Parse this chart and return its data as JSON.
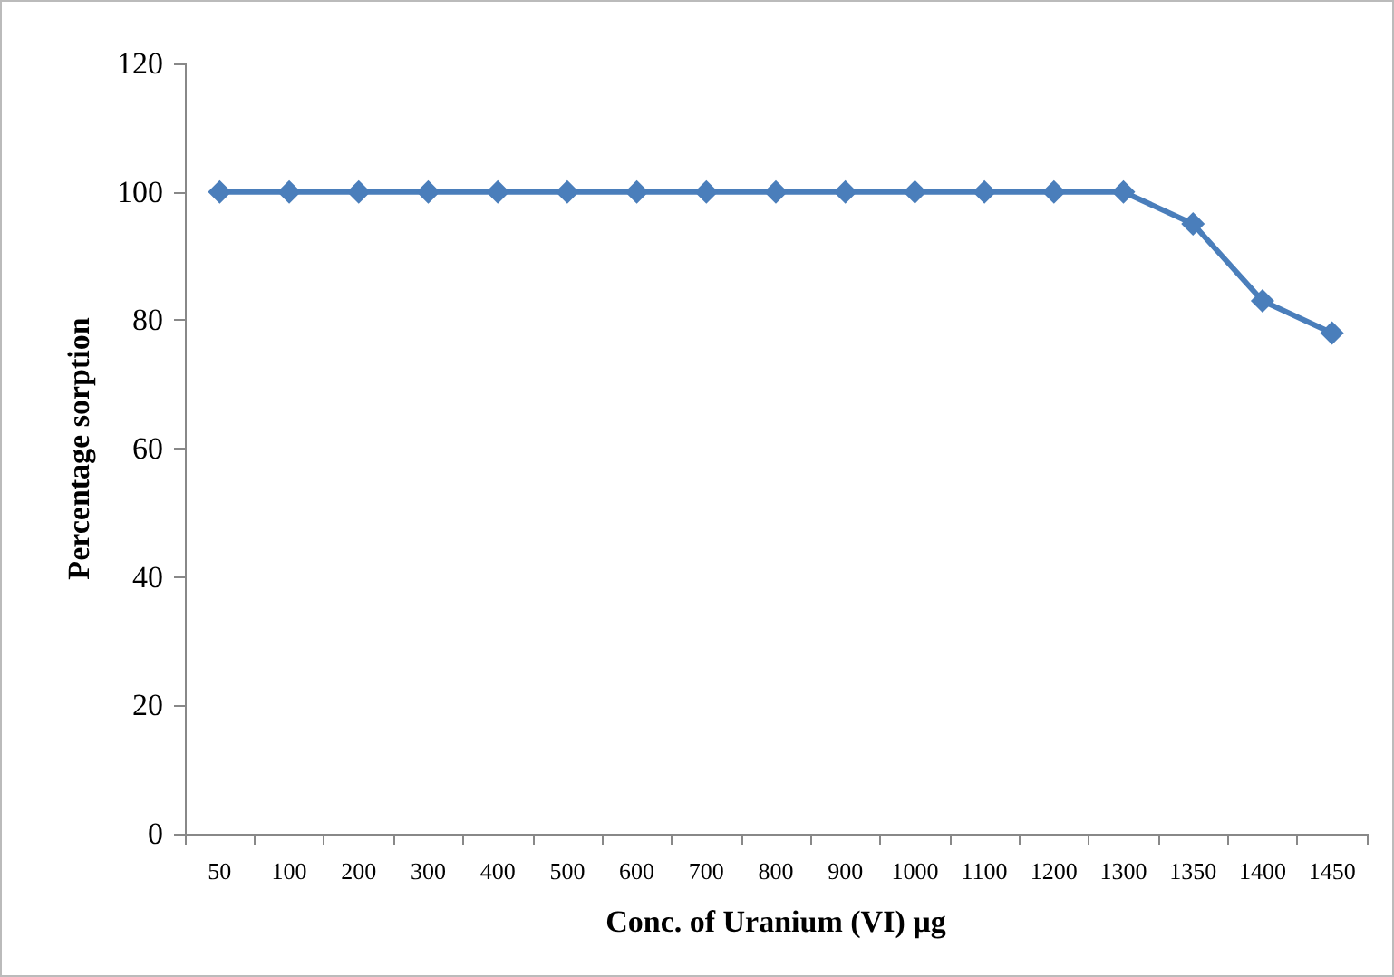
{
  "chart_data": {
    "type": "line",
    "xlabel": "Conc. of Uranium (VI) µg",
    "ylabel": "Percentage sorption",
    "categories": [
      "50",
      "100",
      "200",
      "300",
      "400",
      "500",
      "600",
      "700",
      "800",
      "900",
      "1000",
      "1100",
      "1200",
      "1300",
      "1350",
      "1400",
      "1450"
    ],
    "series": [
      {
        "color": "#4a7ebb",
        "values": [
          100,
          100,
          100,
          100,
          100,
          100,
          100,
          100,
          100,
          100,
          100,
          100,
          100,
          100,
          95,
          83,
          78
        ]
      }
    ],
    "ylim": [
      0,
      120
    ],
    "yticks": [
      0,
      20,
      40,
      60,
      80,
      100,
      120
    ],
    "grid": false,
    "marker": "diamond",
    "line_style": "solid"
  }
}
